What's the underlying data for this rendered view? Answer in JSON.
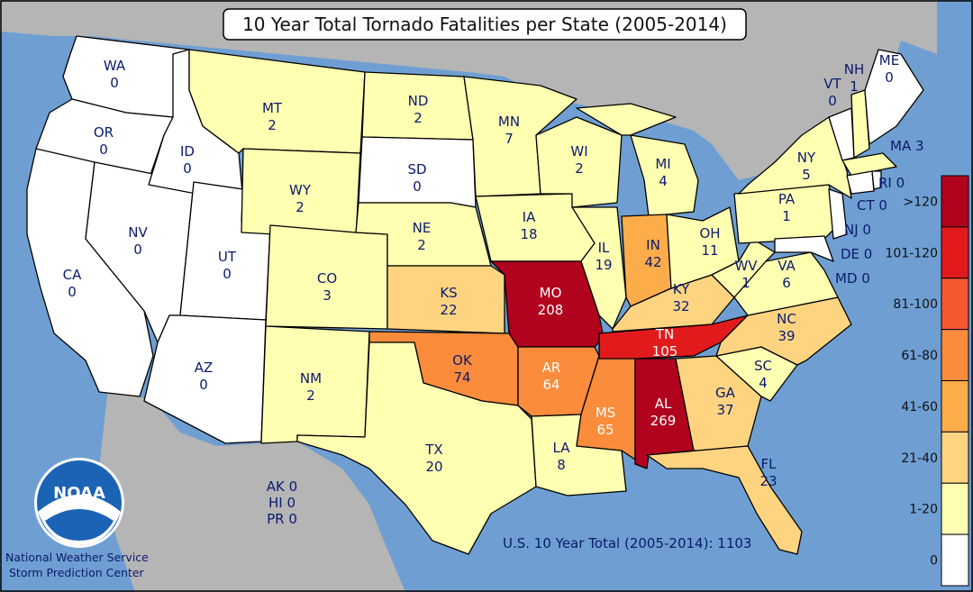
{
  "title": "10 Year Total Tornado Fatalities per State (2005-2014)",
  "total_label": "U.S. 10 Year Total (2005-2014): 1103",
  "credit": {
    "line1": "National Weather Service",
    "line2": "Storm Prediction Center"
  },
  "logo_text": "NOAA",
  "colors": {
    "ocean": "#6f9fd2",
    "land": "#b5b5b5",
    "bin_0": "#ffffff",
    "bin_1_20": "#ffffb2",
    "bin_21_40": "#fed481",
    "bin_41_60": "#fdac4a",
    "bin_61_80": "#fa8c3c",
    "bin_81_100": "#f5582f",
    "bin_101_120": "#e31a1c",
    "bin_gt120": "#b1021e"
  },
  "legend": [
    {
      "label": ">120",
      "color": "#b1021e"
    },
    {
      "label": "101-120",
      "color": "#e31a1c"
    },
    {
      "label": "81-100",
      "color": "#f5582f"
    },
    {
      "label": "61-80",
      "color": "#fa8c3c"
    },
    {
      "label": "41-60",
      "color": "#fdac4a"
    },
    {
      "label": "21-40",
      "color": "#fed481"
    },
    {
      "label": "1-20",
      "color": "#ffffb2"
    },
    {
      "label": "0",
      "color": "#ffffff"
    }
  ],
  "states": {
    "WA": {
      "abbr": "WA",
      "value": "0"
    },
    "OR": {
      "abbr": "OR",
      "value": "0"
    },
    "CA": {
      "abbr": "CA",
      "value": "0"
    },
    "NV": {
      "abbr": "NV",
      "value": "0"
    },
    "ID": {
      "abbr": "ID",
      "value": "0"
    },
    "UT": {
      "abbr": "UT",
      "value": "0"
    },
    "AZ": {
      "abbr": "AZ",
      "value": "0"
    },
    "MT": {
      "abbr": "MT",
      "value": "2"
    },
    "WY": {
      "abbr": "WY",
      "value": "2"
    },
    "CO": {
      "abbr": "CO",
      "value": "3"
    },
    "NM": {
      "abbr": "NM",
      "value": "2"
    },
    "ND": {
      "abbr": "ND",
      "value": "2"
    },
    "SD": {
      "abbr": "SD",
      "value": "0"
    },
    "NE": {
      "abbr": "NE",
      "value": "2"
    },
    "KS": {
      "abbr": "KS",
      "value": "22"
    },
    "OK": {
      "abbr": "OK",
      "value": "74"
    },
    "TX": {
      "abbr": "TX",
      "value": "20"
    },
    "MN": {
      "abbr": "MN",
      "value": "7"
    },
    "IA": {
      "abbr": "IA",
      "value": "18"
    },
    "MO": {
      "abbr": "MO",
      "value": "208"
    },
    "AR": {
      "abbr": "AR",
      "value": "64"
    },
    "LA": {
      "abbr": "LA",
      "value": "8"
    },
    "WI": {
      "abbr": "WI",
      "value": "2"
    },
    "IL": {
      "abbr": "IL",
      "value": "19"
    },
    "MS": {
      "abbr": "MS",
      "value": "65"
    },
    "MI": {
      "abbr": "MI",
      "value": "4"
    },
    "IN": {
      "abbr": "IN",
      "value": "42"
    },
    "KY": {
      "abbr": "KY",
      "value": "32"
    },
    "TN": {
      "abbr": "TN",
      "value": "105"
    },
    "AL": {
      "abbr": "AL",
      "value": "269"
    },
    "OH": {
      "abbr": "OH",
      "value": "11"
    },
    "GA": {
      "abbr": "GA",
      "value": "37"
    },
    "FL": {
      "abbr": "FL",
      "value": "23"
    },
    "SC": {
      "abbr": "SC",
      "value": "4"
    },
    "NC": {
      "abbr": "NC",
      "value": "39"
    },
    "VA": {
      "abbr": "VA",
      "value": "6"
    },
    "WV": {
      "abbr": "WV",
      "value": "1"
    },
    "PA": {
      "abbr": "PA",
      "value": "1"
    },
    "NY": {
      "abbr": "NY",
      "value": "5"
    },
    "VT": {
      "abbr": "VT",
      "value": "0"
    },
    "NH": {
      "abbr": "NH",
      "value": "1"
    },
    "ME": {
      "abbr": "ME",
      "value": "0"
    }
  },
  "side_labels": {
    "ma": "MA 3",
    "ri": "RI 0",
    "ct": "CT 0",
    "nj": "NJ 0",
    "de": "DE 0",
    "md": "MD 0",
    "ak": "AK 0",
    "hi": "HI 0",
    "pr": "PR 0"
  }
}
